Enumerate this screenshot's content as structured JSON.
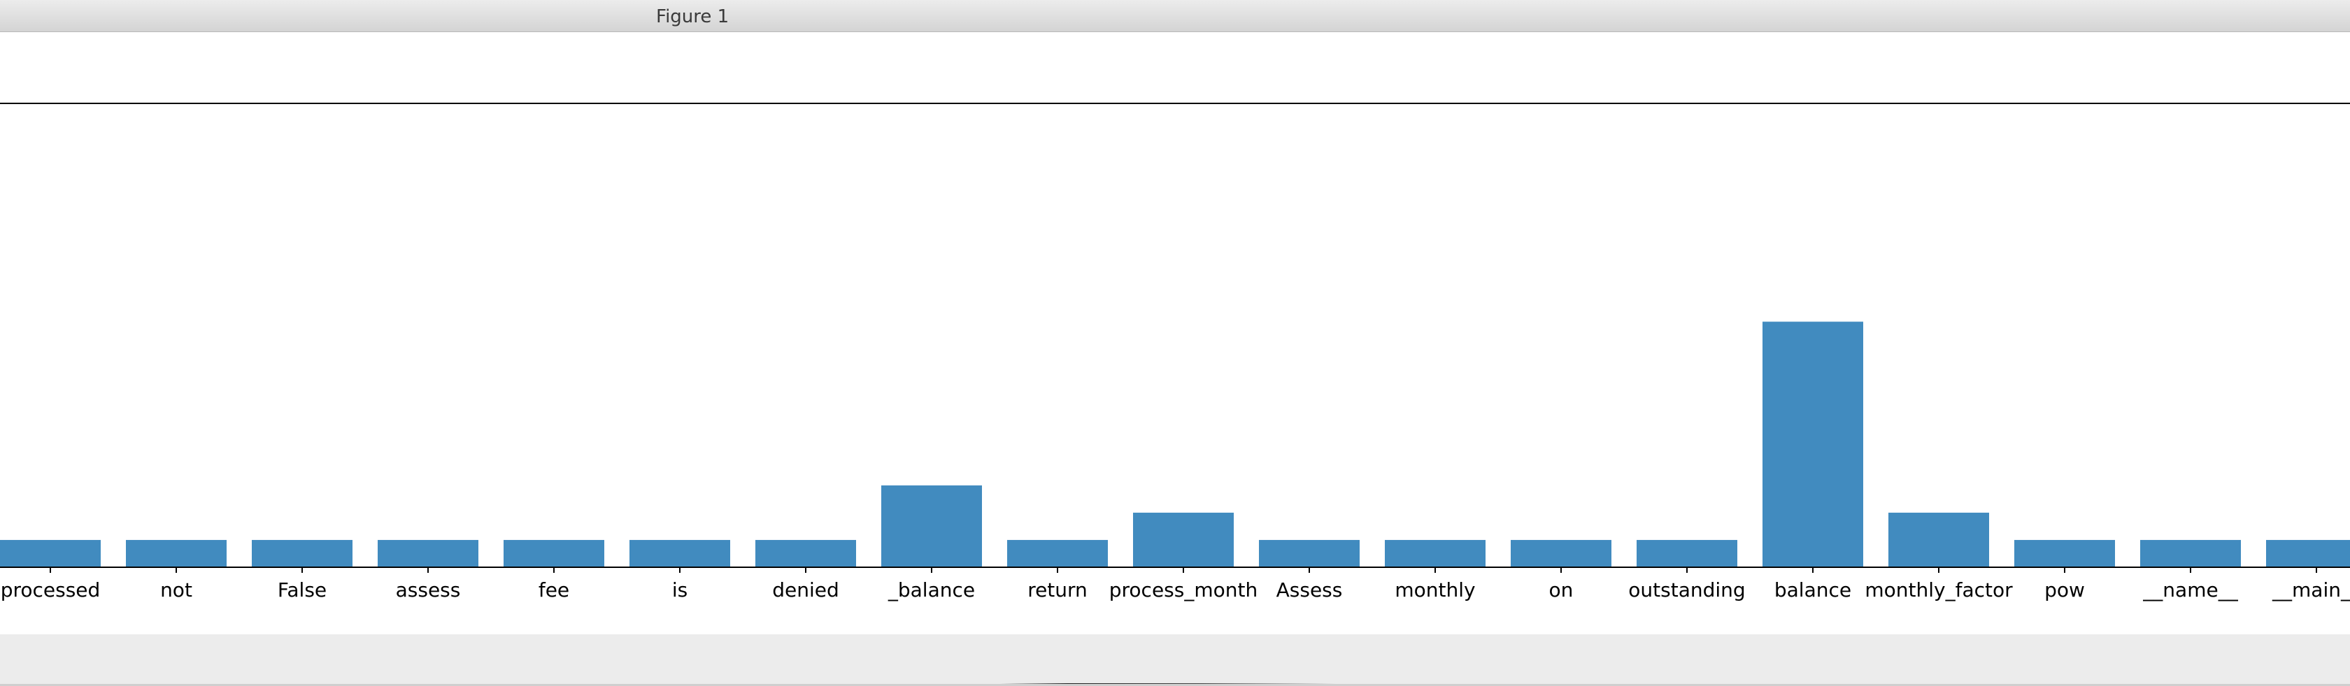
{
  "window": {
    "title": "Figure 1"
  },
  "chart_data": {
    "type": "bar",
    "categories": [
      "processed",
      "not",
      "False",
      "assess",
      "fee",
      "is",
      "denied",
      "_balance",
      "return",
      "process_month",
      "Assess",
      "monthly",
      "on",
      "outstanding",
      "balance",
      "monthly_factor",
      "pow",
      "__name__",
      "__main__"
    ],
    "values": [
      1,
      1,
      1,
      1,
      1,
      1,
      1,
      3,
      1,
      2,
      1,
      1,
      1,
      1,
      9,
      2,
      1,
      1,
      1
    ],
    "bar_color": "#418bbf",
    "title": "",
    "xlabel": "",
    "ylabel": "",
    "ylim": [
      0,
      17
    ],
    "grid": false
  }
}
